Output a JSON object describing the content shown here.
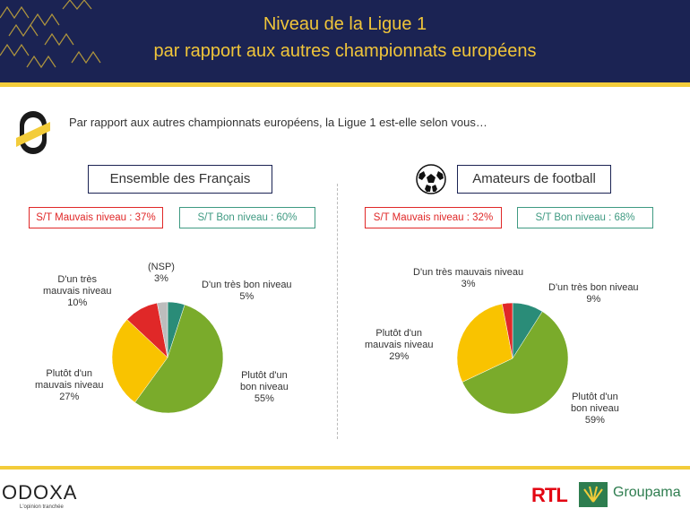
{
  "header": {
    "title_line1": "Niveau de la Ligue 1",
    "title_line2": "par rapport aux autres championnats européens"
  },
  "question": "Par rapport aux autres championnats européens, la Ligue 1 est-elle selon vous…",
  "colors": {
    "header_bg": "#1b2353",
    "accent_yellow": "#f3cc3a",
    "red": "#e02828",
    "teal": "#2a8c78",
    "green": "#7aab2b",
    "yellow": "#f9c300",
    "gray": "#bdbdbd"
  },
  "left_panel": {
    "title": "Ensemble des Français",
    "badge_bad": "S/T Mauvais niveau : 37%",
    "badge_good": "S/T Bon niveau : 60%",
    "labels": {
      "tres_mauvais": [
        "D'un très",
        "mauvais niveau",
        "10%"
      ],
      "nsp": [
        "(NSP)",
        "3%"
      ],
      "tres_bon": [
        "D'un très bon niveau",
        "5%"
      ],
      "plutot_bon": [
        "Plutôt d'un",
        "bon niveau",
        "55%"
      ],
      "plutot_mauvais": [
        "Plutôt d'un",
        "mauvais niveau",
        "27%"
      ]
    }
  },
  "right_panel": {
    "title": "Amateurs de football",
    "icon": "football-icon",
    "badge_bad": "S/T Mauvais niveau : 32%",
    "badge_good": "S/T Bon niveau : 68%",
    "labels": {
      "tres_mauvais": [
        "D'un très mauvais niveau",
        "3%"
      ],
      "tres_bon": [
        "D'un très bon niveau",
        "9%"
      ],
      "plutot_bon": [
        "Plutôt d'un",
        "bon niveau",
        "59%"
      ],
      "plutot_mauvais": [
        "Plutôt d'un",
        "mauvais niveau",
        "29%"
      ]
    }
  },
  "chart_data": [
    {
      "type": "pie",
      "title": "Ensemble des Français",
      "slices": [
        {
          "label": "D'un très bon niveau",
          "value": 5,
          "color": "#2a8c78"
        },
        {
          "label": "Plutôt d'un bon niveau",
          "value": 55,
          "color": "#7aab2b"
        },
        {
          "label": "Plutôt d'un mauvais niveau",
          "value": 27,
          "color": "#f9c300"
        },
        {
          "label": "D'un très mauvais niveau",
          "value": 10,
          "color": "#e02828"
        },
        {
          "label": "(NSP)",
          "value": 3,
          "color": "#bdbdbd"
        }
      ]
    },
    {
      "type": "pie",
      "title": "Amateurs de football",
      "slices": [
        {
          "label": "D'un très bon niveau",
          "value": 9,
          "color": "#2a8c78"
        },
        {
          "label": "Plutôt d'un bon niveau",
          "value": 59,
          "color": "#7aab2b"
        },
        {
          "label": "Plutôt d'un mauvais niveau",
          "value": 29,
          "color": "#f9c300"
        },
        {
          "label": "D'un très mauvais niveau",
          "value": 3,
          "color": "#e02828"
        }
      ]
    }
  ],
  "footer": {
    "odoxa": "ODOXA",
    "odoxa_tagline": "L'opinion tranchée",
    "rtl": "RTL",
    "groupama": "Groupama"
  }
}
